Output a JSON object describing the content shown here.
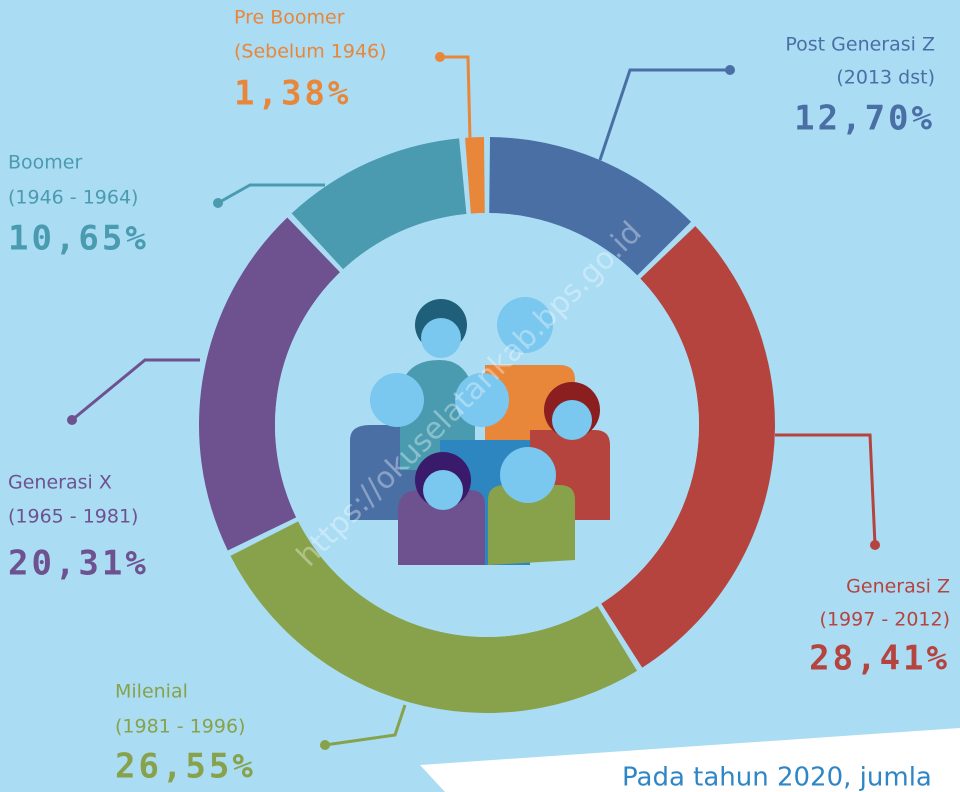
{
  "chart_data": {
    "type": "donut",
    "categories": [
      "Post Generasi Z",
      "Generasi Z",
      "Milenial",
      "Generasi X",
      "Boomer",
      "Pre Boomer"
    ],
    "periods": [
      "(2013 dst)",
      "(1997 - 2012)",
      "(1981 - 1996)",
      "(1965 - 1981)",
      "(1946 - 1964)",
      "(Sebelum 1946)"
    ],
    "values": [
      12.7,
      28.41,
      26.55,
      20.31,
      10.65,
      1.38
    ],
    "value_labels": [
      "12,70%",
      "28,41%",
      "26,55%",
      "20,31%",
      "10,65%",
      "1,38%"
    ],
    "colors": [
      "#4a6fa5",
      "#b5443f",
      "#87a24a",
      "#6e5290",
      "#4a9bb0",
      "#e8873a"
    ]
  },
  "watermark": "https://okuselatankab.bps.go.id",
  "footer_text": "Pada tahun 2020, jumla"
}
